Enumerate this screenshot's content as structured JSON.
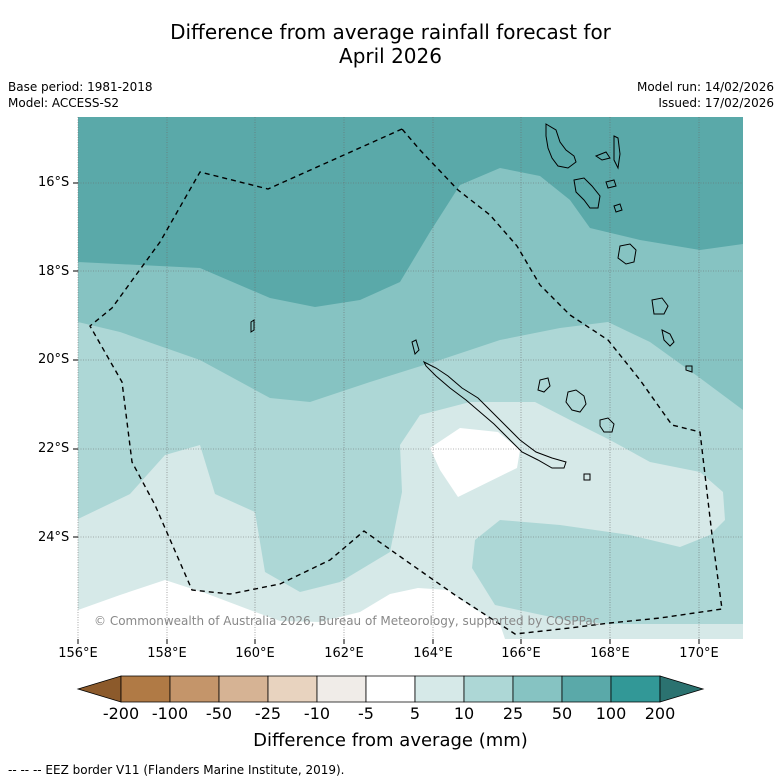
{
  "title_line1": "Difference from average rainfall forecast for",
  "title_line2": "April 2026",
  "base_period": "Base period: 1981-2018",
  "model": "Model: ACCESS-S2",
  "model_run": "Model run: 14/02/2026",
  "issued": "Issued: 17/02/2026",
  "copyright": "© Commonwealth of Australia 2026, Bureau of Meteorology, supported by COSPPac",
  "lat_labels": [
    "16°S",
    "18°S",
    "20°S",
    "22°S",
    "24°S"
  ],
  "lon_labels": [
    "156°E",
    "158°E",
    "160°E",
    "162°E",
    "164°E",
    "166°E",
    "168°E",
    "170°E"
  ],
  "colorbar": {
    "ticks": [
      "-200",
      "-100",
      "-50",
      "-25",
      "-10",
      "-5",
      "5",
      "10",
      "25",
      "50",
      "100",
      "200"
    ],
    "colors": [
      "#8c5a2b",
      "#b07a45",
      "#c4956a",
      "#d6b394",
      "#e8d3bf",
      "#f0ece8",
      "#ffffff",
      "#d6e9e8",
      "#add7d6",
      "#86c3c2",
      "#5aa9a9",
      "#329897",
      "#2b7270"
    ],
    "label": "Difference from average (mm)"
  },
  "footer": "--  --  -- EEZ border V11 (Flanders Marine Institute, 2019).",
  "palette": {
    "c100": "#5aa9a9",
    "c50": "#86c3c2",
    "c25": "#add7d6",
    "c10": "#d6e9e8",
    "c5": "#ffffff"
  }
}
